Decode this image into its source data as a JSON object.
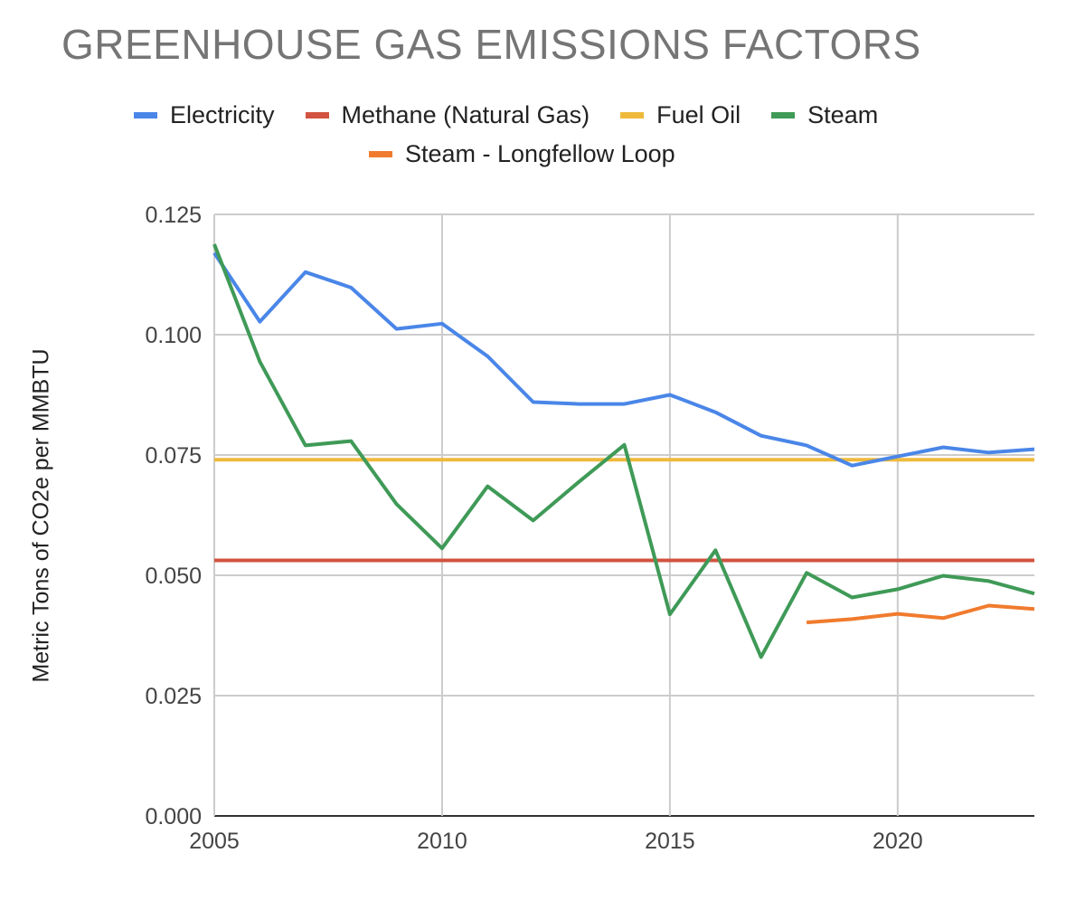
{
  "chart_data": {
    "type": "line",
    "title": "GREENHOUSE GAS EMISSIONS FACTORS",
    "xlabel": "",
    "ylabel": "Metric Tons of CO2e per MMBTU",
    "xlim": [
      2005,
      2023
    ],
    "ylim": [
      0,
      0.125
    ],
    "x_ticks": [
      "2005",
      "2010",
      "2015",
      "2020"
    ],
    "y_ticks": [
      "0.000",
      "0.025",
      "0.050",
      "0.075",
      "0.100",
      "0.125"
    ],
    "grid": true,
    "legend_position": "top",
    "x": [
      2005,
      2006,
      2007,
      2008,
      2009,
      2010,
      2011,
      2012,
      2013,
      2014,
      2015,
      2016,
      2017,
      2018,
      2019,
      2020,
      2021,
      2022,
      2023
    ],
    "series": [
      {
        "name": "Electricity",
        "color": "#4a86e8",
        "values": [
          0.117,
          0.1027,
          0.113,
          0.1098,
          0.1012,
          0.1023,
          0.0955,
          0.086,
          0.0856,
          0.0856,
          0.0875,
          0.0839,
          0.079,
          0.077,
          0.0728,
          0.0747,
          0.0766,
          0.0755,
          0.0762
        ]
      },
      {
        "name": "Methane (Natural Gas)",
        "color": "#d2533f",
        "values": [
          0.0531,
          0.0531,
          0.0531,
          0.0531,
          0.0531,
          0.0531,
          0.0531,
          0.0531,
          0.0531,
          0.0531,
          0.0531,
          0.0531,
          0.0531,
          0.0531,
          0.0531,
          0.0531,
          0.0531,
          0.0531,
          0.0531
        ]
      },
      {
        "name": "Fuel Oil",
        "color": "#efb93c",
        "values": [
          0.074,
          0.074,
          0.074,
          0.074,
          0.074,
          0.074,
          0.074,
          0.074,
          0.074,
          0.074,
          0.074,
          0.074,
          0.074,
          0.074,
          0.074,
          0.074,
          0.074,
          0.074,
          0.074
        ]
      },
      {
        "name": "Steam",
        "color": "#3f9a57",
        "values": [
          0.1188,
          0.0944,
          0.077,
          0.0779,
          0.0648,
          0.0556,
          0.0685,
          0.0614,
          0.0694,
          0.0771,
          0.0419,
          0.0552,
          0.033,
          0.0505,
          0.0454,
          0.0471,
          0.0499,
          0.0488,
          0.0462
        ]
      },
      {
        "name": "Steam - Longfellow Loop",
        "color": "#f07b2e",
        "values": [
          null,
          null,
          null,
          null,
          null,
          null,
          null,
          null,
          null,
          null,
          null,
          null,
          null,
          0.0402,
          0.0409,
          0.042,
          0.0411,
          0.0437,
          0.043
        ]
      }
    ]
  }
}
